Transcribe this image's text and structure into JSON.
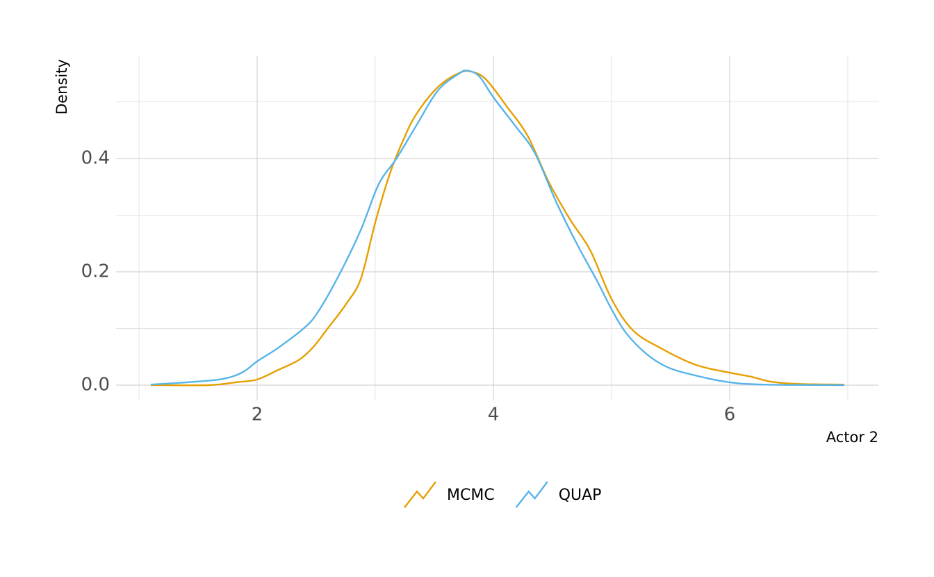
{
  "chart_data": {
    "type": "line",
    "x_label": "Actor 2",
    "y_label": "Density",
    "xlim": [
      0.806,
      7.259
    ],
    "ylim": [
      -0.027,
      0.5816
    ],
    "xticks": [
      2,
      4,
      6
    ],
    "x_minor_ticks": [
      1,
      3,
      5,
      7
    ],
    "yticks": [
      {
        "value": 0,
        "label": "0.0"
      },
      {
        "value": 0.2,
        "label": "0.2"
      },
      {
        "value": 0.4,
        "label": "0.4"
      }
    ],
    "y_minor_ticks": [
      0.1,
      0.3,
      0.5
    ],
    "grid": true,
    "legend": "bottom",
    "series": [
      {
        "name": "MCMC",
        "color": "#E69F00",
        "x": [
          1.1,
          1.59,
          1.82,
          2.0,
          2.18,
          2.35,
          2.47,
          2.59,
          2.76,
          2.88,
          3.0,
          3.12,
          3.24,
          3.35,
          3.53,
          3.71,
          3.82,
          3.94,
          4.12,
          4.29,
          4.47,
          4.65,
          4.82,
          5.0,
          5.18,
          5.41,
          5.71,
          6.0,
          6.18,
          6.35,
          6.59,
          6.97
        ],
        "values": [
          0,
          0,
          0.005,
          0.01,
          0.027,
          0.044,
          0.066,
          0.098,
          0.145,
          0.189,
          0.287,
          0.371,
          0.434,
          0.479,
          0.526,
          0.551,
          0.553,
          0.539,
          0.49,
          0.44,
          0.358,
          0.292,
          0.238,
          0.152,
          0.097,
          0.066,
          0.036,
          0.022,
          0.015,
          0.006,
          0.002,
          0.001
        ]
      },
      {
        "name": "QUAP",
        "color": "#56B4E9",
        "x": [
          1.1,
          1.41,
          1.71,
          1.88,
          2.0,
          2.18,
          2.41,
          2.53,
          2.71,
          2.88,
          3.03,
          3.18,
          3.35,
          3.53,
          3.71,
          3.78,
          3.88,
          4.0,
          4.18,
          4.35,
          4.53,
          4.71,
          4.88,
          5.0,
          5.12,
          5.29,
          5.47,
          5.71,
          6.0,
          6.29,
          6.97
        ],
        "values": [
          0.001,
          0.005,
          0.011,
          0.023,
          0.042,
          0.066,
          0.103,
          0.134,
          0.201,
          0.275,
          0.355,
          0.4,
          0.459,
          0.52,
          0.55,
          0.555,
          0.545,
          0.508,
          0.459,
          0.41,
          0.324,
          0.248,
          0.183,
          0.134,
          0.093,
          0.056,
          0.032,
          0.017,
          0.005,
          0.001,
          0
        ]
      }
    ]
  }
}
